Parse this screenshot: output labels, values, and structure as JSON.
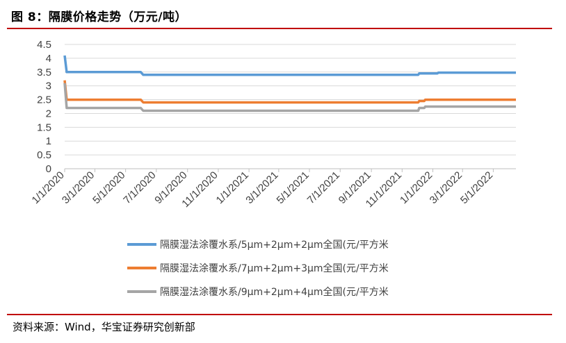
{
  "figure": {
    "title": "图 8：隔膜价格走势（万元/吨）",
    "source": "资料来源：Wind，华宝证券研究创新部",
    "accent_color": "#c00000"
  },
  "chart_data": {
    "type": "line",
    "title": "",
    "xlabel": "",
    "ylabel": "",
    "ylim": [
      0,
      4.5
    ],
    "y_ticks": [
      "0",
      "0.5",
      "1",
      "1.5",
      "2",
      "2.5",
      "3",
      "3.5",
      "4",
      "4.5"
    ],
    "x_ticks": [
      "1/1/2020",
      "3/1/2020",
      "5/1/2020",
      "7/1/2020",
      "9/1/2020",
      "11/1/2020",
      "1/1/2021",
      "3/1/2021",
      "5/1/2021",
      "7/1/2021",
      "9/1/2021",
      "11/1/2021",
      "1/1/2022",
      "3/1/2022",
      "5/1/2022"
    ],
    "x_range": [
      "2020-01-01",
      "2022-06-15"
    ],
    "grid": "horizontal",
    "legend_position": "bottom",
    "series": [
      {
        "name": "隔膜湿法涂覆水系/5μm+2μm+2μm全国(元/平方米",
        "color": "#5b9bd5",
        "points": [
          [
            "2020-01-01",
            4.1
          ],
          [
            "2020-01-05",
            3.5
          ],
          [
            "2020-05-31",
            3.5
          ],
          [
            "2020-06-05",
            3.4
          ],
          [
            "2021-12-03",
            3.4
          ],
          [
            "2021-12-05",
            3.45
          ],
          [
            "2022-01-10",
            3.45
          ],
          [
            "2022-01-12",
            3.48
          ],
          [
            "2022-06-15",
            3.48
          ]
        ]
      },
      {
        "name": "隔膜湿法涂覆水系/7μm+2μm+3μm全国(元/平方米",
        "color": "#ed7d31",
        "points": [
          [
            "2020-01-01",
            3.2
          ],
          [
            "2020-01-05",
            2.5
          ],
          [
            "2020-05-31",
            2.5
          ],
          [
            "2020-06-05",
            2.4
          ],
          [
            "2021-12-03",
            2.4
          ],
          [
            "2021-12-05",
            2.45
          ],
          [
            "2021-12-15",
            2.45
          ],
          [
            "2021-12-17",
            2.5
          ],
          [
            "2022-06-15",
            2.5
          ]
        ]
      },
      {
        "name": "隔膜湿法涂覆水系/9μm+2μm+4μm全国(元/平方米",
        "color": "#a5a5a5",
        "points": [
          [
            "2020-01-01",
            3.1
          ],
          [
            "2020-01-05",
            2.2
          ],
          [
            "2020-05-31",
            2.2
          ],
          [
            "2020-06-05",
            2.1
          ],
          [
            "2021-12-03",
            2.1
          ],
          [
            "2021-12-05",
            2.2
          ],
          [
            "2021-12-15",
            2.2
          ],
          [
            "2021-12-17",
            2.25
          ],
          [
            "2022-06-15",
            2.25
          ]
        ]
      }
    ]
  }
}
